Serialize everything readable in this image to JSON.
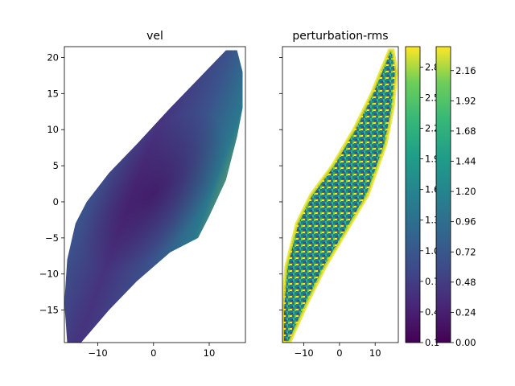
{
  "chart_data": [
    {
      "type": "heatmap",
      "title": "vel",
      "xlabel": "",
      "ylabel": "",
      "xlim": [
        -16,
        16.5
      ],
      "ylim": [
        -19.5,
        21.5
      ],
      "xticks": [
        -10,
        0,
        10
      ],
      "xtick_labels": [
        "−10",
        "0",
        "10"
      ],
      "yticks": [
        -15,
        -10,
        -5,
        0,
        5,
        10,
        15,
        20
      ],
      "ytick_labels": [
        "−15",
        "−10",
        "−5",
        "0",
        "5",
        "10",
        "15",
        "20"
      ],
      "colormap": "viridis",
      "colorbar_ticks": [
        0.1,
        0.4,
        0.7,
        1.0,
        1.3,
        1.6,
        1.9,
        2.2,
        2.5,
        2.8
      ],
      "colorbar_tick_labels": [
        "0.1",
        "0.4",
        "0.7",
        "1.0",
        "1.3",
        "1.6",
        "1.9",
        "2.2",
        "2.5",
        "2.8"
      ],
      "colorbar_range": [
        0.1,
        3.0
      ],
      "domain_outline": [
        [
          -15.5,
          -19.5
        ],
        [
          -13,
          -19.5
        ],
        [
          -8,
          -15
        ],
        [
          -3,
          -11
        ],
        [
          3,
          -7
        ],
        [
          8,
          -5
        ],
        [
          10,
          -2
        ],
        [
          13,
          3
        ],
        [
          15,
          9
        ],
        [
          16,
          13
        ],
        [
          16,
          18
        ],
        [
          15,
          21
        ],
        [
          13,
          21
        ],
        [
          8,
          17
        ],
        [
          3,
          13
        ],
        [
          -3,
          8
        ],
        [
          -8,
          4
        ],
        [
          -12,
          0
        ],
        [
          -14,
          -3
        ],
        [
          -15.5,
          -8
        ],
        [
          -16,
          -14
        ]
      ],
      "color_description": "low values (dark purple) along the diagonal ridge, rising to green/yellow toward edges"
    },
    {
      "type": "heatmap",
      "title": "perturbation-rms",
      "xlabel": "",
      "ylabel": "",
      "xlim": [
        -16,
        16.5
      ],
      "ylim": [
        -19.5,
        21.5
      ],
      "xticks": [
        -10,
        0,
        10
      ],
      "xtick_labels": [
        "−10",
        "0",
        "10"
      ],
      "yticks_shared": true,
      "colormap": "viridis",
      "colorbar_ticks": [
        0.0,
        0.24,
        0.48,
        0.72,
        0.96,
        1.2,
        1.44,
        1.68,
        1.92,
        2.16
      ],
      "colorbar_tick_labels": [
        "0.00",
        "0.24",
        "0.48",
        "0.72",
        "0.96",
        "1.20",
        "1.44",
        "1.68",
        "1.92",
        "2.16"
      ],
      "colorbar_range": [
        0.0,
        2.35
      ],
      "domain_outline": [
        [
          -16,
          -19.5
        ],
        [
          -14,
          -19.5
        ],
        [
          -9,
          -14
        ],
        [
          -4,
          -9
        ],
        [
          2,
          -4
        ],
        [
          8,
          1
        ],
        [
          13,
          8
        ],
        [
          15,
          13
        ],
        [
          16,
          18
        ],
        [
          15,
          21
        ],
        [
          14,
          21
        ],
        [
          9,
          15
        ],
        [
          4,
          10
        ],
        [
          -2,
          5
        ],
        [
          -8,
          1
        ],
        [
          -12,
          -3
        ],
        [
          -15,
          -9
        ],
        [
          -16,
          -15
        ]
      ],
      "color_description": "noisy mix of blue, teal and yellow; bright yellow bands along edges"
    }
  ]
}
